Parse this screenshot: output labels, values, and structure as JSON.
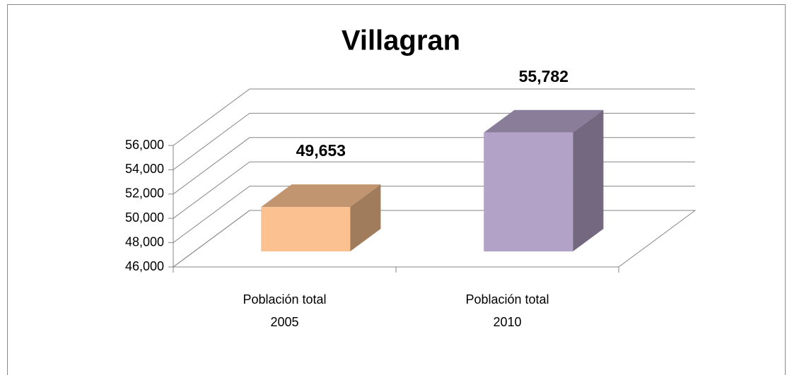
{
  "chart_data": {
    "type": "bar3d",
    "title": "Villagran",
    "categories": [
      "Población total 2005",
      "Población total 2010"
    ],
    "values": [
      49653,
      55782
    ],
    "value_labels": [
      "49,653",
      "55,782"
    ],
    "colors": [
      "#fbc190",
      "#b3a2c7"
    ],
    "ylim": [
      46000,
      56000
    ],
    "yticks": [
      {
        "value": 46000,
        "label": "46,000"
      },
      {
        "value": 48000,
        "label": "48,000"
      },
      {
        "value": 50000,
        "label": "50,000"
      },
      {
        "value": 52000,
        "label": "52,000"
      },
      {
        "value": 54000,
        "label": "54,000"
      },
      {
        "value": 56000,
        "label": "56,000"
      }
    ],
    "grid": true
  }
}
